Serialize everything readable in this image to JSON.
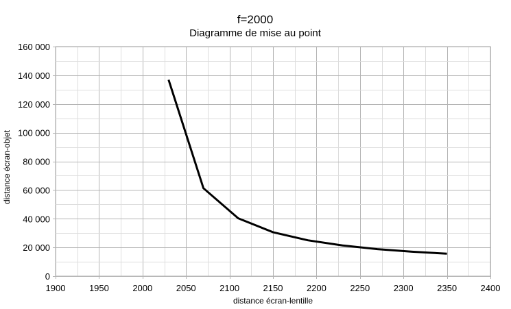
{
  "chart_data": {
    "type": "line",
    "title": "f=2000",
    "subtitle": "Diagramme de mise au point",
    "xlabel": "distance écran-lentille",
    "ylabel": "distance écran-objet",
    "xlim": [
      1900,
      2400
    ],
    "ylim": [
      0,
      160000
    ],
    "x_ticks": [
      1900,
      1950,
      2000,
      2050,
      2100,
      2150,
      2200,
      2250,
      2300,
      2350,
      2400
    ],
    "x_tick_labels": [
      "1900",
      "1950",
      "2000",
      "2050",
      "2100",
      "2150",
      "2200",
      "2250",
      "2300",
      "2350",
      "2400"
    ],
    "y_ticks": [
      0,
      20000,
      40000,
      60000,
      80000,
      100000,
      120000,
      140000,
      160000
    ],
    "y_tick_labels": [
      "0",
      "20 000",
      "40 000",
      "60 000",
      "80 000",
      "100 000",
      "120 000",
      "140 000",
      "160 000"
    ],
    "grid": true,
    "legend": "none",
    "line_color": "#000000",
    "series": [
      {
        "x": [
          2030,
          2070,
          2110,
          2150,
          2190,
          2230,
          2270,
          2310,
          2350
        ],
        "y": [
          136900,
          61300,
          40300,
          30600,
          25000,
          21400,
          18800,
          17000,
          15600
        ]
      }
    ]
  }
}
